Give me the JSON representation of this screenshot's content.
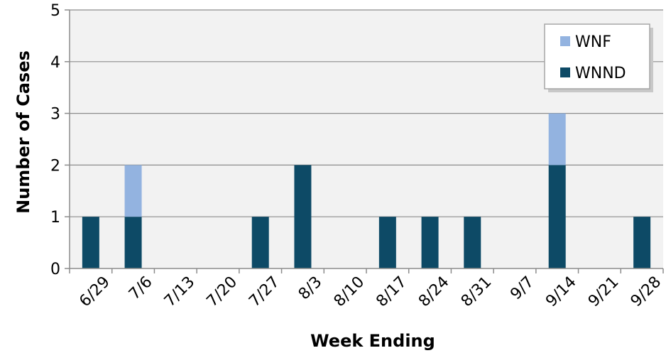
{
  "chart_data": {
    "type": "bar",
    "stacked": true,
    "title": "",
    "xlabel": "Week Ending",
    "ylabel": "Number of Cases",
    "ylim": [
      0,
      5
    ],
    "yticks": [
      0,
      1,
      2,
      3,
      4,
      5
    ],
    "grid": true,
    "legend_position": "top-right",
    "categories": [
      "6/29",
      "7/6",
      "7/13",
      "7/20",
      "7/27",
      "8/3",
      "8/10",
      "8/17",
      "8/24",
      "8/31",
      "9/7",
      "9/14",
      "9/21",
      "9/28"
    ],
    "series": [
      {
        "name": "WNND",
        "color": "#0d4a66",
        "values": [
          1,
          1,
          0,
          0,
          1,
          2,
          0,
          1,
          1,
          1,
          0,
          2,
          0,
          1
        ]
      },
      {
        "name": "WNF",
        "color": "#93b3e0",
        "values": [
          0,
          1,
          0,
          0,
          0,
          0,
          0,
          0,
          0,
          0,
          0,
          1,
          0,
          0
        ]
      }
    ],
    "legend_order": [
      "WNF",
      "WNND"
    ],
    "plot_background": "#f2f2f2",
    "grid_color": "#8c8c8c"
  }
}
